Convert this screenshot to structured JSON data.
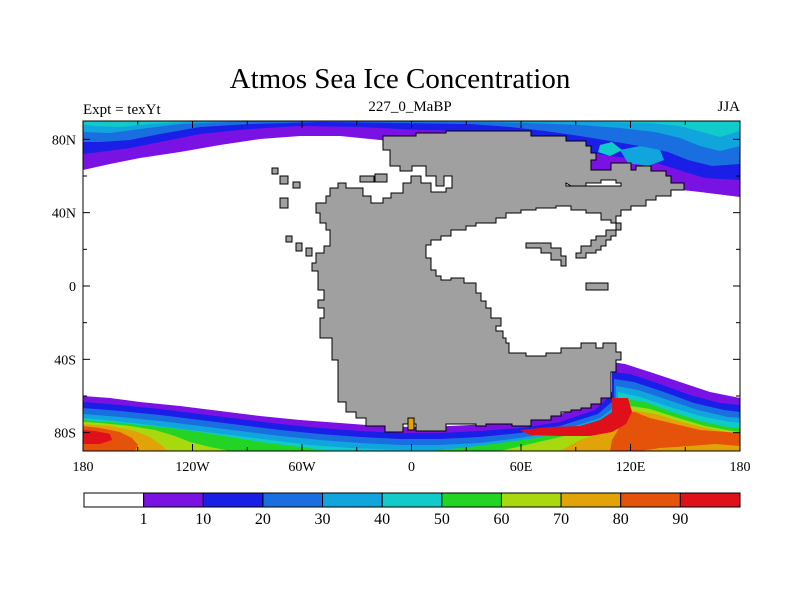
{
  "title": "Atmos Sea Ice Concentration",
  "left_string": "Expt = texYt",
  "center_string": "227_0_MaBP",
  "right_string": "JJA",
  "x_ticks": [
    "180",
    "120W",
    "60W",
    "0",
    "60E",
    "120E",
    "180"
  ],
  "y_ticks": [
    "80N",
    "40N",
    "0",
    "40S",
    "80S"
  ],
  "colorbar": {
    "labels": [
      "1",
      "10",
      "20",
      "30",
      "40",
      "50",
      "60",
      "70",
      "80",
      "90"
    ],
    "colors": [
      "#ffffff",
      "#7a12e4",
      "#1a1fe8",
      "#1a6fe0",
      "#10a6dd",
      "#11cbcb",
      "#24d424",
      "#a8d90f",
      "#e0a408",
      "#e5530a",
      "#e0101a"
    ]
  },
  "land_color": "#a0a0a0"
}
